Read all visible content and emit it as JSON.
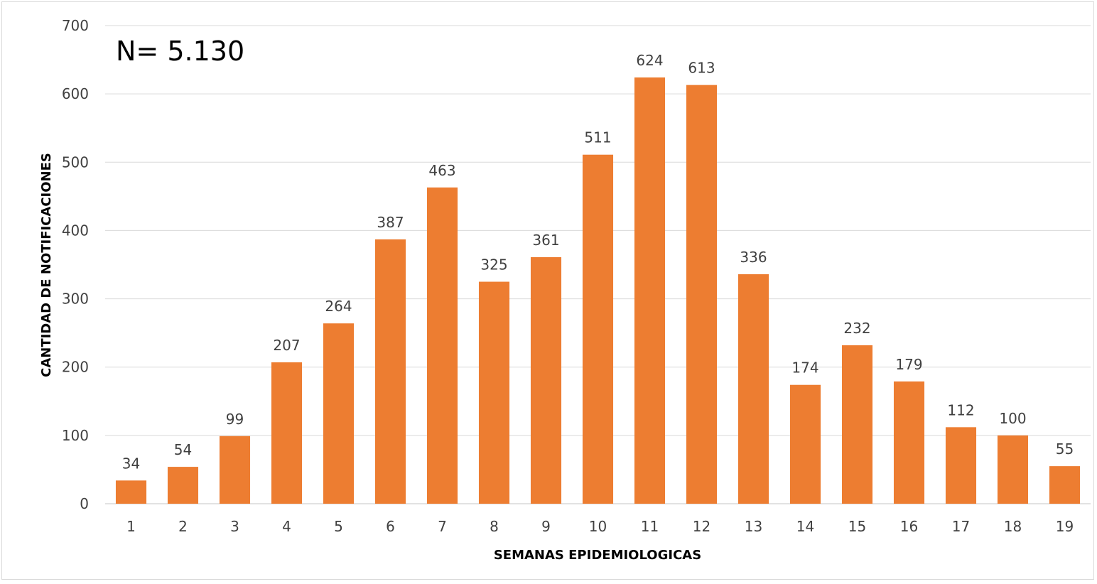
{
  "chart_data": {
    "type": "bar",
    "title": "",
    "annotation": "N= 5.130",
    "xlabel": "SEMANAS EPIDEMIOLOGICAS",
    "ylabel": "CANTIDAD DE NOTIFICACIONES",
    "ylim": [
      0,
      700
    ],
    "yticks": [
      0,
      100,
      200,
      300,
      400,
      500,
      600,
      700
    ],
    "grid": true,
    "legend": "none",
    "categories": [
      "1",
      "2",
      "3",
      "4",
      "5",
      "6",
      "7",
      "8",
      "9",
      "10",
      "11",
      "12",
      "13",
      "14",
      "15",
      "16",
      "17",
      "18",
      "19"
    ],
    "values": [
      34,
      54,
      99,
      207,
      264,
      387,
      463,
      325,
      361,
      511,
      624,
      613,
      336,
      174,
      232,
      179,
      112,
      100,
      55
    ],
    "bar_color": "#ED7D31",
    "gridline_color": "#D9D9D9"
  }
}
